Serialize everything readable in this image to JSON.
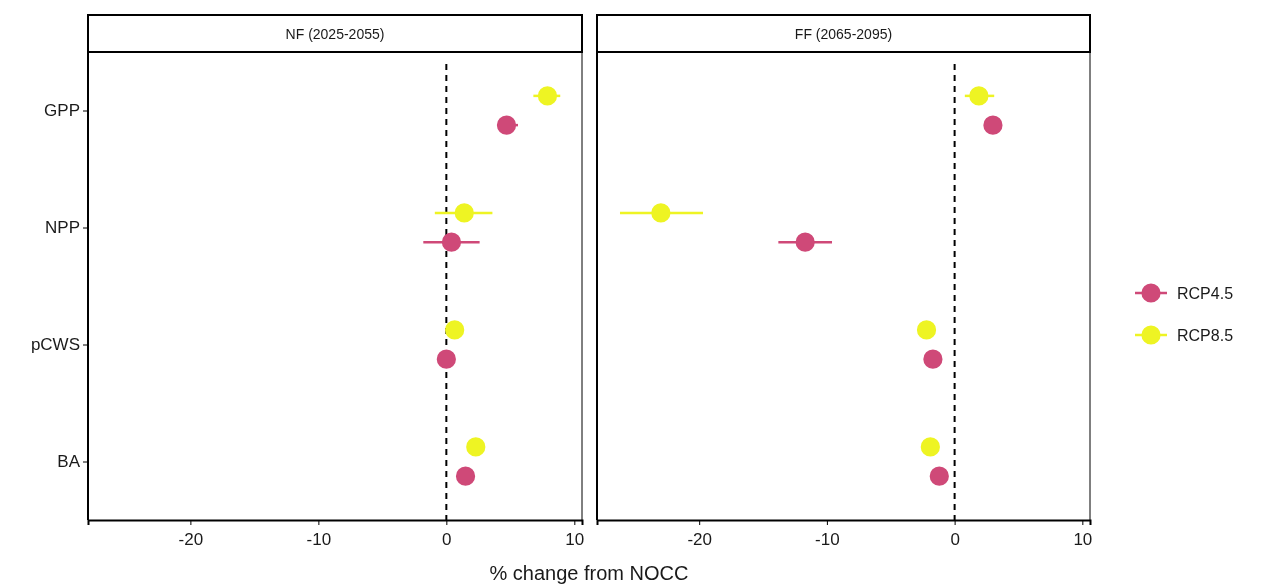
{
  "chart_data": [
    {
      "type": "scatter",
      "title": "NF (2025-2055)",
      "xlabel": "% change from NOCC",
      "orientation": "horizontal",
      "categories": [
        "GPP",
        "NPP",
        "pCWS",
        "BA"
      ],
      "xlim": [
        -28,
        10.6
      ],
      "xticks": [
        -20,
        -10,
        0,
        10
      ],
      "marker": "circle",
      "grid": false,
      "legend": "right",
      "ref_lines": [
        {
          "axis": "x",
          "value": 0,
          "color": "#000000",
          "line_style": "dashed"
        }
      ],
      "series": [
        {
          "name": "RCP4.5",
          "color": "#cf4978",
          "values": [
            4.7,
            0.4,
            0.0,
            1.5
          ],
          "errors": [
            [
              4.0,
              5.6
            ],
            [
              -1.8,
              2.6
            ],
            null,
            null
          ]
        },
        {
          "name": "RCP8.5",
          "color": "#eef423",
          "values": [
            7.9,
            1.4,
            0.65,
            2.3
          ],
          "errors": [
            [
              6.8,
              8.9
            ],
            [
              -0.9,
              3.6
            ],
            null,
            null
          ]
        }
      ]
    },
    {
      "type": "scatter",
      "title": "FF (2065-2095)",
      "orientation": "horizontal",
      "categories": [
        null,
        null,
        null,
        null
      ],
      "xlim": [
        -28,
        10.6
      ],
      "xticks": [
        -20,
        -10,
        0,
        10
      ],
      "marker": "circle",
      "grid": false,
      "tick_labels": "x",
      "ref_lines": [
        {
          "axis": "x",
          "value": 0,
          "color": "#000000",
          "line_style": "dashed"
        }
      ],
      "series": [
        {
          "color": "#cf4978",
          "values": [
            3.0,
            -11.7,
            -1.7,
            -1.2
          ],
          "errors": [
            null,
            [
              -13.8,
              -9.6
            ],
            null,
            null
          ]
        },
        {
          "color": "#eef423",
          "values": [
            1.9,
            -23.0,
            -2.2,
            -1.9
          ],
          "errors": [
            [
              0.8,
              3.1
            ],
            [
              -26.2,
              -19.7
            ],
            null,
            null
          ]
        }
      ]
    }
  ]
}
